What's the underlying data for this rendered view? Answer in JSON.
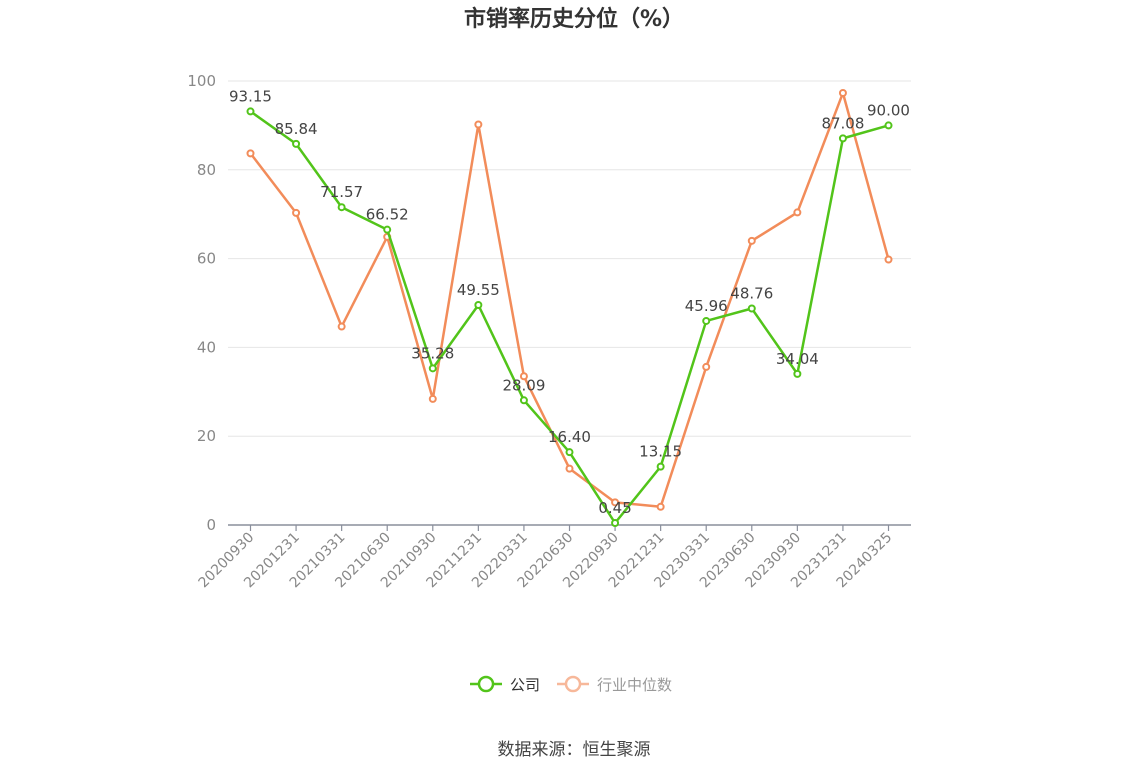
{
  "chart_data": {
    "type": "line",
    "title": "市销率历史分位（%）",
    "categories": [
      "20200930",
      "20201231",
      "20210331",
      "20210630",
      "20210930",
      "20211231",
      "20220331",
      "20220630",
      "20220930",
      "20221231",
      "20230331",
      "20230630",
      "20230930",
      "20231231",
      "20240325"
    ],
    "ylim": [
      0,
      100
    ],
    "yticks": [
      0,
      20,
      40,
      60,
      80,
      100
    ],
    "grid": true,
    "legend_position": "bottom-center",
    "series": [
      {
        "name": "公司",
        "color": "#52c41a",
        "show_labels": true,
        "values": [
          93.15,
          85.84,
          71.57,
          66.52,
          35.28,
          49.55,
          28.09,
          16.4,
          0.45,
          13.15,
          45.96,
          48.76,
          34.04,
          87.08,
          90.0
        ],
        "labels": [
          "93.15",
          "85.84",
          "71.57",
          "66.52",
          "35.28",
          "49.55",
          "28.09",
          "16.40",
          "0.45",
          "13.15",
          "45.96",
          "48.76",
          "34.04",
          "87.08",
          "90.00"
        ]
      },
      {
        "name": "行业中位数",
        "color": "#f28c5a",
        "show_labels": false,
        "values": [
          83.7,
          70.3,
          44.7,
          64.9,
          28.4,
          90.2,
          33.5,
          12.7,
          5.1,
          4.1,
          35.6,
          64.0,
          70.4,
          97.3,
          59.8
        ]
      }
    ]
  },
  "source_text": "数据来源：恒生聚源"
}
